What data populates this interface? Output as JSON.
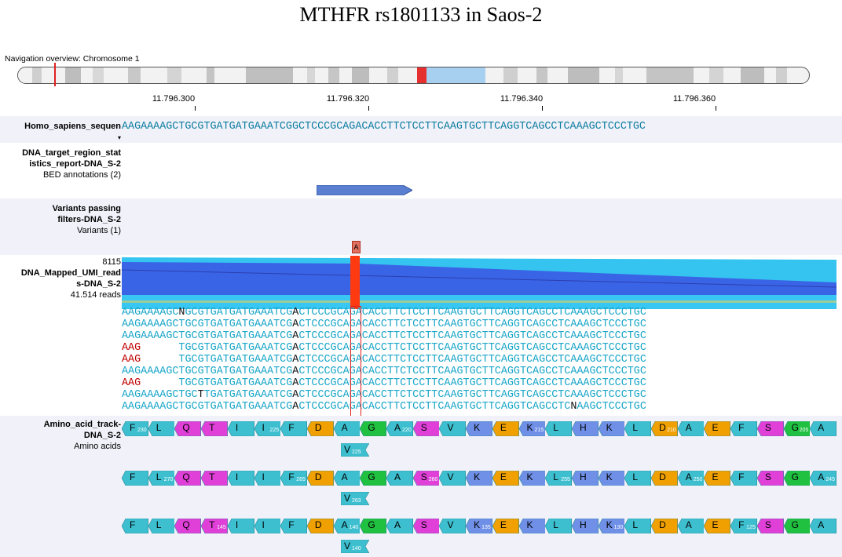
{
  "title": "MTHFR rs1801133 in Saos-2",
  "navigation": {
    "label": "Navigation overview: Chromosome 1"
  },
  "ruler": {
    "ticks": [
      "11.796.300",
      "11.796.320",
      "11.796.340",
      "11.796.360"
    ]
  },
  "tracks": {
    "reference": {
      "label": "Homo_sapiens_sequen",
      "sequence": "AAGAAAAGCTGCGTGATGATGAAATCGGCTCCCGCAGACACCTTCTCCTTCAAGTGCTTCAGGTCAGCCTCAAAGCTCCCTGC"
    },
    "bed": {
      "label_line1": "DNA_target_region_stat",
      "label_line2": "istics_report-DNA_S-2",
      "sublabel": "BED annotations (2)"
    },
    "variants": {
      "label_line1": "Variants passing",
      "label_line2": "filters-DNA_S-2",
      "sublabel": "Variants (1)",
      "alt_base": "A"
    },
    "reads": {
      "max_coverage": "8115",
      "label_line1": "DNA_Mapped_UMI_read",
      "label_line2": "s-DNA_S-2",
      "sublabel": "41.514 reads",
      "rows": [
        "AAGAAAAGCNGCGTGATGATGAAATCGACTCCCGCAGACACCTTCTCCTTCAAGTGCTTCAGGTCAGCCTCAAAGCTCCCTGC",
        "AAGAAAAGCTGCGTGATGATGAAATCGACTCCCGCAGACACCTTCTCCTTCAAGTGCTTCAGGTCAGCCTCAAAGCTCCCTGC",
        "AAGAAAAGCTGCGTGATGATGAAATCGACTCCCGCAGACACCTTCTCCTTCAAGTGCTTCAGGTCAGCCTCAAAGCTCCCTGC",
        "AAG      TGCGTGATGATGAAATCGACTCCCGCAGACACCTTCTCCTTCAAGTGCTTCAGGTCAGCCTCAAAGCTCCCTGC",
        "AAG      TGCGTGATGATGAAATCGACTCCCGCAGACACCTTCTCCTTCAAGTGCTTCAGGTCAGCCTCAAAGCTCCCTGC",
        "AAGAAAAGCTGCGTGATGATGAAATCGACTCCCGCAGACACCTTCTCCTTCAAGTGCTTCAGGTCAGCCTCAAAGCTCCCTGC",
        "AAG      TGCGTGATGATGAAATCGACTCCCGCAGACACCTTCTCCTTCAAGTGCTTCAGGTCAGCCTCAAAGCTCCCTGC",
        "AAGAAAAGCTGCTTGATGATGAAATCGACTCCCGCAGACACCTTCTCCTTCAAGTGCTTCAGGTCAGCCTCAAAGCTCCCTGC",
        "AAGAAAAGCTGCGTGATGATGAAATCGACTCCCGCAGACACCTTCTCCTTCAAGTGCTTCAGGTCAGCCTCNAAGCTCCCTGC"
      ]
    },
    "amino": {
      "label_line1": "Amino_acid_track-",
      "label_line2": "DNA_S-2",
      "sublabel": "Amino acids",
      "rows": [
        {
          "cells": [
            {
              "aa": "F",
              "num": "230"
            },
            {
              "aa": "L",
              "num": ""
            },
            {
              "aa": "Q",
              "num": ""
            },
            {
              "aa": "T",
              "num": ""
            },
            {
              "aa": "I",
              "num": ""
            },
            {
              "aa": "I",
              "num": "225"
            },
            {
              "aa": "F",
              "num": ""
            },
            {
              "aa": "D",
              "num": ""
            },
            {
              "aa": "A",
              "num": ""
            },
            {
              "aa": "G",
              "num": ""
            },
            {
              "aa": "A",
              "num": "220"
            },
            {
              "aa": "S",
              "num": ""
            },
            {
              "aa": "V",
              "num": ""
            },
            {
              "aa": "K",
              "num": ""
            },
            {
              "aa": "E",
              "num": ""
            },
            {
              "aa": "K",
              "num": "215"
            },
            {
              "aa": "L",
              "num": ""
            },
            {
              "aa": "H",
              "num": ""
            },
            {
              "aa": "K",
              "num": ""
            },
            {
              "aa": "L",
              "num": ""
            },
            {
              "aa": "D",
              "num": "210"
            },
            {
              "aa": "A",
              "num": ""
            },
            {
              "aa": "E",
              "num": ""
            },
            {
              "aa": "F",
              "num": ""
            },
            {
              "aa": "S",
              "num": ""
            },
            {
              "aa": "G",
              "num": "205"
            },
            {
              "aa": "A",
              "num": ""
            }
          ],
          "variant": {
            "aa": "V",
            "num": "225"
          }
        },
        {
          "cells": [
            {
              "aa": "F",
              "num": ""
            },
            {
              "aa": "L",
              "num": "270"
            },
            {
              "aa": "Q",
              "num": ""
            },
            {
              "aa": "T",
              "num": ""
            },
            {
              "aa": "I",
              "num": ""
            },
            {
              "aa": "I",
              "num": ""
            },
            {
              "aa": "F",
              "num": "265"
            },
            {
              "aa": "D",
              "num": ""
            },
            {
              "aa": "A",
              "num": ""
            },
            {
              "aa": "G",
              "num": ""
            },
            {
              "aa": "A",
              "num": ""
            },
            {
              "aa": "S",
              "num": "260"
            },
            {
              "aa": "V",
              "num": ""
            },
            {
              "aa": "K",
              "num": ""
            },
            {
              "aa": "E",
              "num": ""
            },
            {
              "aa": "K",
              "num": ""
            },
            {
              "aa": "L",
              "num": "255"
            },
            {
              "aa": "H",
              "num": ""
            },
            {
              "aa": "K",
              "num": ""
            },
            {
              "aa": "L",
              "num": ""
            },
            {
              "aa": "D",
              "num": ""
            },
            {
              "aa": "A",
              "num": "250"
            },
            {
              "aa": "E",
              "num": ""
            },
            {
              "aa": "F",
              "num": ""
            },
            {
              "aa": "S",
              "num": ""
            },
            {
              "aa": "G",
              "num": ""
            },
            {
              "aa": "A",
              "num": "245"
            }
          ],
          "variant": {
            "aa": "V",
            "num": "263"
          }
        },
        {
          "cells": [
            {
              "aa": "F",
              "num": ""
            },
            {
              "aa": "L",
              "num": ""
            },
            {
              "aa": "Q",
              "num": ""
            },
            {
              "aa": "T",
              "num": "145"
            },
            {
              "aa": "I",
              "num": ""
            },
            {
              "aa": "I",
              "num": ""
            },
            {
              "aa": "F",
              "num": ""
            },
            {
              "aa": "D",
              "num": ""
            },
            {
              "aa": "A",
              "num": "140"
            },
            {
              "aa": "G",
              "num": ""
            },
            {
              "aa": "A",
              "num": ""
            },
            {
              "aa": "S",
              "num": ""
            },
            {
              "aa": "V",
              "num": ""
            },
            {
              "aa": "K",
              "num": "135"
            },
            {
              "aa": "E",
              "num": ""
            },
            {
              "aa": "K",
              "num": ""
            },
            {
              "aa": "L",
              "num": ""
            },
            {
              "aa": "H",
              "num": ""
            },
            {
              "aa": "K",
              "num": "130"
            },
            {
              "aa": "L",
              "num": ""
            },
            {
              "aa": "D",
              "num": ""
            },
            {
              "aa": "A",
              "num": ""
            },
            {
              "aa": "E",
              "num": ""
            },
            {
              "aa": "F",
              "num": "125"
            },
            {
              "aa": "S",
              "num": ""
            },
            {
              "aa": "G",
              "num": ""
            },
            {
              "aa": "A",
              "num": ""
            }
          ],
          "variant": {
            "aa": "V",
            "num": "140"
          }
        }
      ]
    }
  },
  "colors": {
    "aa_default": "#3dbfcf",
    "aa_magenta": "#e040d8",
    "aa_orange": "#f0a000",
    "aa_green": "#20c040",
    "aa_blue": "#7090e8",
    "variant_red": "#e02020",
    "coverage_light": "#33c0ee",
    "coverage_dark": "#3860e8"
  }
}
